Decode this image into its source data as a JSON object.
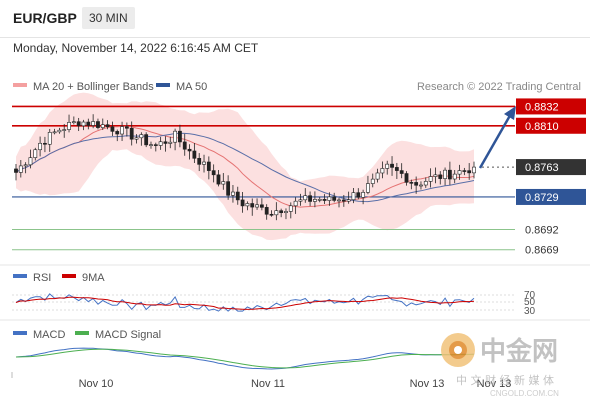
{
  "header": {
    "symbol": "EUR/GBP",
    "timeframe": "30 MIN"
  },
  "datetime": "Monday, November 14, 2022 6:16:45 AM CET",
  "legend": {
    "main": [
      {
        "label": "MA 20 + Bollinger Bands",
        "color": "#f4a0a0"
      },
      {
        "label": "MA 50",
        "color": "#2f5597"
      }
    ],
    "rsi": [
      {
        "label": "RSI",
        "color": "#4472c4"
      },
      {
        "label": "9MA",
        "color": "#cc0000"
      }
    ],
    "macd": [
      {
        "label": "MACD",
        "color": "#4472c4"
      },
      {
        "label": "MACD Signal",
        "color": "#4caf50"
      }
    ]
  },
  "credit": "Research © 2022 Trading Central",
  "levels": [
    {
      "value": "0.8832",
      "kind": "resistance-strong"
    },
    {
      "value": "0.8810",
      "kind": "resistance"
    },
    {
      "value": "0.8763",
      "kind": "current"
    },
    {
      "value": "0.8729",
      "kind": "pivot"
    },
    {
      "value": "0.8692",
      "kind": "support"
    },
    {
      "value": "0.8669",
      "kind": "support"
    }
  ],
  "rsi_levels": [
    "70",
    "50",
    "30"
  ],
  "x_labels": [
    "Nov 10",
    "Nov 11",
    "Nov 13",
    "Nov 13"
  ],
  "watermark": {
    "logo_text": "中金网",
    "sub_text": "中 文 财 经 新 媒 体",
    "url": "CNGOLD.COM.CN"
  },
  "colors": {
    "red": "#cc0000",
    "blue": "#2f5597",
    "green": "#8bc48b",
    "band": "#fbd5d5"
  },
  "chart_data": {
    "type": "candlestick",
    "price_range": [
      0.8655,
      0.8845
    ],
    "price_pivots": [
      [
        0,
        0.8757
      ],
      [
        5,
        0.879
      ],
      [
        9,
        0.8806
      ],
      [
        13,
        0.8815
      ],
      [
        17,
        0.8812
      ],
      [
        21,
        0.8806
      ],
      [
        25,
        0.8797
      ],
      [
        29,
        0.8787
      ],
      [
        33,
        0.8798
      ],
      [
        37,
        0.8775
      ],
      [
        41,
        0.8756
      ],
      [
        44,
        0.8734
      ],
      [
        47,
        0.8722
      ],
      [
        50,
        0.8717
      ],
      [
        53,
        0.8712
      ],
      [
        56,
        0.8718
      ],
      [
        59,
        0.8724
      ],
      [
        62,
        0.8727
      ],
      [
        65,
        0.8725
      ],
      [
        68,
        0.8727
      ],
      [
        71,
        0.8733
      ],
      [
        74,
        0.8745
      ],
      [
        77,
        0.8762
      ],
      [
        80,
        0.8755
      ],
      [
        83,
        0.8744
      ],
      [
        86,
        0.875
      ],
      [
        89,
        0.8754
      ],
      [
        92,
        0.8758
      ],
      [
        95,
        0.8763
      ]
    ],
    "candle_count": 96,
    "current_price": 0.8763
  }
}
